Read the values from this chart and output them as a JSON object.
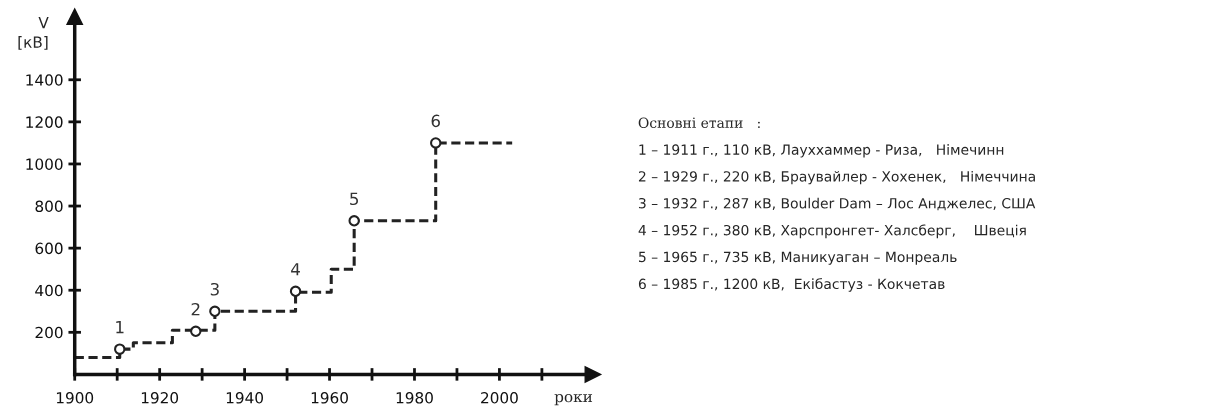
{
  "chart_data": [
    {
      "type": "step",
      "xlabel": "роки",
      "ylabel": "V\n[кВ]",
      "xlim": [
        1900,
        2022
      ],
      "ylim": [
        0,
        1700
      ],
      "xticks": [
        1900,
        {
          "value": 1910,
          "label": null
        },
        1920,
        {
          "value": 1930,
          "label": null
        },
        1940,
        {
          "value": 1950,
          "label": null
        },
        1960,
        {
          "value": 1970,
          "label": null
        },
        1980,
        {
          "value": 1990,
          "label": null
        },
        2000,
        {
          "value": 2010,
          "label": null
        }
      ],
      "yticks": [
        200,
        400,
        600,
        800,
        1000,
        1200,
        1400
      ],
      "grid": false,
      "legend": false,
      "series": [
        {
          "type": "step",
          "color": "#222222",
          "line_style": "dashed",
          "marker": "none",
          "x": [
            1900,
            1910.6,
            1913.8,
            1923,
            1933,
            1952,
            1960.4,
            1965.8,
            1985,
            2003
          ],
          "values": [
            80,
            120,
            150,
            210,
            300,
            390,
            500,
            730,
            1100,
            1100
          ]
        },
        {
          "type": "scatter",
          "color": "#222222",
          "marker": "circle",
          "x": [
            1910.6,
            1928.5,
            1933,
            1952,
            1965.8,
            1985
          ],
          "values": [
            120,
            205,
            300,
            395,
            730,
            1100
          ]
        }
      ],
      "annotations": [
        {
          "text": "1",
          "x": 1910.6,
          "y": 120
        },
        {
          "text": "2",
          "x": 1928.5,
          "y": 205
        },
        {
          "text": "3",
          "x": 1933,
          "y": 300
        },
        {
          "text": "4",
          "x": 1952,
          "y": 395
        },
        {
          "text": "5",
          "x": 1965.8,
          "y": 730
        },
        {
          "text": "6",
          "x": 1985,
          "y": 1100
        }
      ]
    },
    {
      "type": "other",
      "title": "Основні етапи   :",
      "annotations": [
        "1 – 1911 г., 110 кВ, Лауххаммер - Риза,   Німечинн",
        "2 – 1929 г., 220 кВ, Браувайлер - Хохенек,   Німеччина",
        "3 – 1932 г., 287 кВ, Boulder Dam – Лос Анджелес, США",
        "4 – 1952 г., 380 кВ, Харспронгет- Халсберг,    Швеція",
        "5 – 1965 г., 735 кВ, Маникуаган – Монреаль",
        "6 – 1985 г., 1200 кВ,  Екібастуз - Кокчетав"
      ]
    }
  ]
}
